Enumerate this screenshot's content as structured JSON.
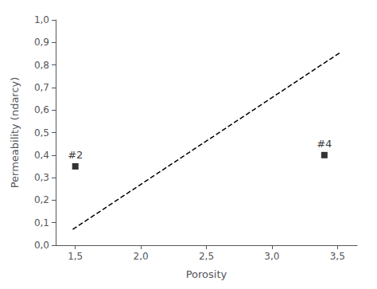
{
  "chart_data": {
    "type": "line",
    "title": "",
    "xlabel": "Porosity",
    "ylabel": "Permeability (ndarcy)",
    "xlim": [
      1.35,
      3.65
    ],
    "ylim": [
      0.0,
      1.0
    ],
    "xticks": [
      {
        "value": 1.5,
        "label": "1,5"
      },
      {
        "value": 2.0,
        "label": "2,0"
      },
      {
        "value": 2.5,
        "label": "2,5"
      },
      {
        "value": 3.0,
        "label": "3,0"
      },
      {
        "value": 3.5,
        "label": "3,5"
      }
    ],
    "yticks": [
      {
        "value": 0.0,
        "label": "0,0"
      },
      {
        "value": 0.1,
        "label": "0,1"
      },
      {
        "value": 0.2,
        "label": "0,2"
      },
      {
        "value": 0.3,
        "label": "0,3"
      },
      {
        "value": 0.4,
        "label": "0,4"
      },
      {
        "value": 0.5,
        "label": "0,5"
      },
      {
        "value": 0.6,
        "label": "0,6"
      },
      {
        "value": 0.7,
        "label": "0,7"
      },
      {
        "value": 0.8,
        "label": "0,8"
      },
      {
        "value": 0.9,
        "label": "0,9"
      },
      {
        "value": 1.0,
        "label": "1,0"
      }
    ],
    "grid": false,
    "series": [
      {
        "type": "line",
        "x": [
          1.48,
          3.52
        ],
        "values": [
          0.07,
          0.855
        ],
        "color": "#000000",
        "line_style": "dashed"
      },
      {
        "type": "scatter",
        "x": [
          1.5,
          3.4
        ],
        "values": [
          0.35,
          0.4
        ],
        "color": "#000000",
        "marker": "square"
      }
    ],
    "annotations": [
      {
        "x": 1.5,
        "y": 0.35,
        "text": "#2"
      },
      {
        "x": 3.4,
        "y": 0.4,
        "text": "#4"
      }
    ]
  }
}
